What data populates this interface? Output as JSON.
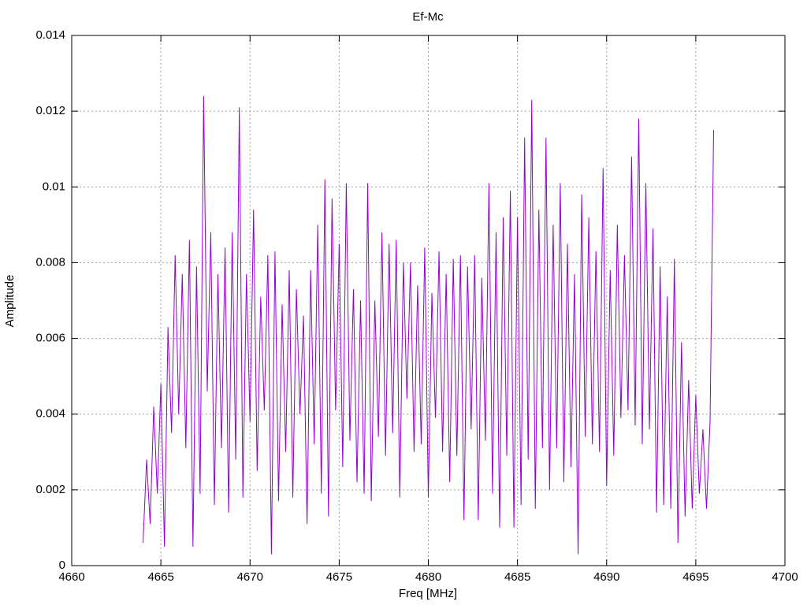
{
  "chart_data": {
    "type": "line",
    "title": "Ef-Mc",
    "xlabel": "Freq [MHz]",
    "ylabel": "Amplitude",
    "color": "#9400d3",
    "grid": true,
    "xlim": [
      4660,
      4700
    ],
    "xticks": [
      4660,
      4665,
      4670,
      4675,
      4680,
      4685,
      4690,
      4695,
      4700
    ],
    "ylim": [
      0,
      0.014
    ],
    "yticks": [
      0,
      0.002,
      0.004,
      0.006,
      0.008,
      0.01,
      0.012,
      0.014
    ],
    "x": [
      4664,
      4664.2,
      4664.4,
      4664.6,
      4664.8,
      4665,
      4665.2,
      4665.4,
      4665.6,
      4665.8,
      4666,
      4666.2,
      4666.4,
      4666.6,
      4666.8,
      4667,
      4667.2,
      4667.4,
      4667.6,
      4667.8,
      4668,
      4668.2,
      4668.4,
      4668.6,
      4668.8,
      4669,
      4669.2,
      4669.4,
      4669.6,
      4669.8,
      4670,
      4670.2,
      4670.4,
      4670.6,
      4670.8,
      4671,
      4671.2,
      4671.4,
      4671.6,
      4671.8,
      4672,
      4672.2,
      4672.4,
      4672.6,
      4672.8,
      4673,
      4673.2,
      4673.4,
      4673.6,
      4673.8,
      4674,
      4674.2,
      4674.4,
      4674.6,
      4674.8,
      4675,
      4675.2,
      4675.4,
      4675.6,
      4675.8,
      4676,
      4676.2,
      4676.4,
      4676.6,
      4676.8,
      4677,
      4677.2,
      4677.4,
      4677.6,
      4677.8,
      4678,
      4678.2,
      4678.4,
      4678.6,
      4678.8,
      4679,
      4679.2,
      4679.4,
      4679.6,
      4679.8,
      4680,
      4680.2,
      4680.4,
      4680.6,
      4680.8,
      4681,
      4681.2,
      4681.4,
      4681.6,
      4681.8,
      4682,
      4682.2,
      4682.4,
      4682.6,
      4682.8,
      4683,
      4683.2,
      4683.4,
      4683.6,
      4683.8,
      4684,
      4684.2,
      4684.4,
      4684.6,
      4684.8,
      4685,
      4685.2,
      4685.4,
      4685.6,
      4685.8,
      4686,
      4686.2,
      4686.4,
      4686.6,
      4686.8,
      4687,
      4687.2,
      4687.4,
      4687.6,
      4687.8,
      4688,
      4688.2,
      4688.4,
      4688.6,
      4688.8,
      4689,
      4689.2,
      4689.4,
      4689.6,
      4689.8,
      4690,
      4690.2,
      4690.4,
      4690.6,
      4690.8,
      4691,
      4691.2,
      4691.4,
      4691.6,
      4691.8,
      4692,
      4692.2,
      4692.4,
      4692.6,
      4692.8,
      4693,
      4693.2,
      4693.4,
      4693.6,
      4693.8,
      4694,
      4694.2,
      4694.4,
      4694.6,
      4694.8,
      4695,
      4695.2,
      4695.4,
      4695.6,
      4695.8,
      4696
    ],
    "values": [
      0.0006,
      0.0028,
      0.0011,
      0.0042,
      0.0019,
      0.0048,
      0.0005,
      0.0063,
      0.0035,
      0.0082,
      0.004,
      0.0077,
      0.0031,
      0.0086,
      0.0005,
      0.0079,
      0.0019,
      0.0124,
      0.0046,
      0.0088,
      0.0016,
      0.0077,
      0.0031,
      0.0084,
      0.0014,
      0.0088,
      0.0028,
      0.0121,
      0.0018,
      0.0077,
      0.0038,
      0.0094,
      0.0025,
      0.0071,
      0.0041,
      0.0082,
      0.0003,
      0.0083,
      0.0017,
      0.0069,
      0.003,
      0.0078,
      0.0018,
      0.0073,
      0.004,
      0.0066,
      0.0011,
      0.0078,
      0.0032,
      0.009,
      0.0019,
      0.0102,
      0.0013,
      0.0097,
      0.0041,
      0.0085,
      0.0026,
      0.0101,
      0.0033,
      0.0073,
      0.0022,
      0.007,
      0.0019,
      0.0101,
      0.0017,
      0.007,
      0.0034,
      0.0088,
      0.0029,
      0.0085,
      0.0035,
      0.0086,
      0.0018,
      0.008,
      0.0044,
      0.008,
      0.003,
      0.0074,
      0.0032,
      0.0084,
      0.0018,
      0.0072,
      0.0039,
      0.0083,
      0.003,
      0.0077,
      0.0022,
      0.0081,
      0.0029,
      0.0082,
      0.0012,
      0.0079,
      0.0036,
      0.0082,
      0.0012,
      0.0076,
      0.0033,
      0.0101,
      0.0019,
      0.0088,
      0.001,
      0.0092,
      0.0029,
      0.0099,
      0.001,
      0.0092,
      0.0016,
      0.0113,
      0.0028,
      0.0123,
      0.0015,
      0.0094,
      0.0031,
      0.0113,
      0.002,
      0.009,
      0.0031,
      0.0101,
      0.0022,
      0.0085,
      0.0026,
      0.0077,
      0.0003,
      0.0098,
      0.0034,
      0.0092,
      0.0032,
      0.0083,
      0.003,
      0.0105,
      0.0021,
      0.0078,
      0.0029,
      0.009,
      0.0039,
      0.0082,
      0.0041,
      0.0108,
      0.0037,
      0.0118,
      0.0032,
      0.0101,
      0.0036,
      0.0089,
      0.0014,
      0.0079,
      0.0016,
      0.0071,
      0.0015,
      0.0081,
      0.0006,
      0.0059,
      0.0013,
      0.0049,
      0.0015,
      0.0045,
      0.0019,
      0.0036,
      0.0015,
      0.0038,
      0.0115
    ]
  }
}
